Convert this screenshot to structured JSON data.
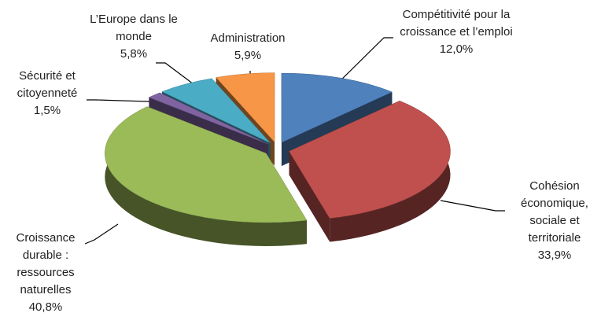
{
  "chart_data": {
    "type": "pie",
    "categories": [
      "Compétitivité pour la croissance et l’emploi",
      "Cohésion économique, sociale et territoriale",
      "Croissance durable : ressources naturelles",
      "Sécurité et citoyenneté",
      "L’Europe dans le monde",
      "Administration"
    ],
    "values": [
      12.0,
      33.9,
      40.8,
      1.5,
      5.8,
      5.9
    ],
    "value_labels": [
      "12,0%",
      "33,9%",
      "40,8%",
      "1,5%",
      "5,8%",
      "5,9%"
    ],
    "colors": [
      "#4f81bd",
      "#c0504d",
      "#9bbb59",
      "#8064a2",
      "#4bacc6",
      "#f79646"
    ]
  }
}
